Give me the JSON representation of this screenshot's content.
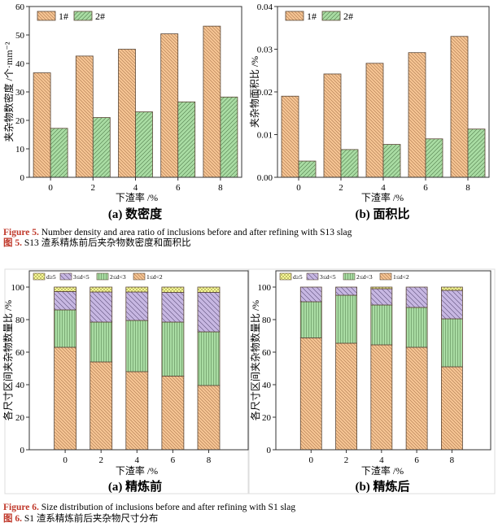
{
  "figure5": {
    "caption_en_label": "Figure 5.",
    "caption_en": " Number density and area ratio of inclusions before and after refining with S13 slag",
    "caption_zh_label": "图 5.",
    "caption_zh": " S13 渣系精炼前后夹杂物数密度和面积比"
  },
  "figure6": {
    "caption_en_label": "Figure 6.",
    "caption_en": " Size distribution of inclusions before and after refining with S1 slag",
    "caption_zh_label": "图 6.",
    "caption_zh": " S1 渣系精炼前后夹杂物尺寸分布"
  },
  "colors": {
    "orange": "#f6c594",
    "green": "#a9dca3",
    "purple": "#c7b7e2",
    "yellow": "#fbfb9a",
    "edge": "#5a4636"
  },
  "chart_data": [
    {
      "type": "bar",
      "title": "(a) 数密度",
      "xlabel": "下渣率 /%",
      "ylabel": "夹杂物数密度 /个·mm⁻²",
      "categories": [
        0,
        2,
        4,
        6,
        8
      ],
      "xlim": [
        -1,
        9
      ],
      "ylim": [
        0,
        60
      ],
      "yticks": [
        0,
        10,
        20,
        30,
        40,
        50,
        60
      ],
      "ytick_labels": [
        "0",
        "10",
        "20",
        "30",
        "40",
        "50",
        "60"
      ],
      "legend": "top-left",
      "series": [
        {
          "name": "1#",
          "values": [
            36.7,
            42.6,
            45.0,
            50.4,
            53.1
          ]
        },
        {
          "name": "2#",
          "values": [
            17.2,
            21.0,
            23.0,
            26.5,
            28.2
          ]
        }
      ]
    },
    {
      "type": "bar",
      "title": "(b) 面积比",
      "xlabel": "下渣率 /%",
      "ylabel": "夹杂物面积比 /%",
      "categories": [
        0,
        2,
        4,
        6,
        8
      ],
      "xlim": [
        -1,
        9
      ],
      "ylim": [
        0,
        0.04
      ],
      "yticks": [
        0,
        0.01,
        0.02,
        0.03,
        0.04
      ],
      "ytick_labels": [
        "0.00",
        "0.01",
        "0.02",
        "0.03",
        "0.04"
      ],
      "legend": "top-left",
      "series": [
        {
          "name": "1#",
          "values": [
            0.019,
            0.0242,
            0.0267,
            0.0292,
            0.033
          ]
        },
        {
          "name": "2#",
          "values": [
            0.0038,
            0.0065,
            0.0077,
            0.009,
            0.0113
          ]
        }
      ]
    },
    {
      "type": "stacked_bar",
      "title": "(a) 精炼前",
      "xlabel": "下渣率 /%",
      "ylabel": "各尺寸区间夹杂物数量比 /%",
      "categories": [
        0,
        2,
        4,
        6,
        8
      ],
      "xlim": [
        -2,
        10.2
      ],
      "ylim": [
        0,
        110
      ],
      "yticks": [
        0,
        20,
        40,
        60,
        80,
        100
      ],
      "ytick_labels": [
        "0",
        "20",
        "40",
        "60",
        "80",
        "100"
      ],
      "legend": "top",
      "series": [
        {
          "name": "1≤d<2",
          "values": [
            63.0,
            54.0,
            48.0,
            45.3,
            39.5
          ]
        },
        {
          "name": "2≤d<3",
          "values": [
            23.0,
            24.5,
            31.5,
            33.2,
            33.0
          ]
        },
        {
          "name": "3≤d<5",
          "values": [
            11.3,
            18.5,
            17.5,
            18.3,
            24.3
          ]
        },
        {
          "name": "d≥5",
          "values": [
            2.7,
            3.0,
            3.0,
            3.2,
            3.2
          ]
        }
      ]
    },
    {
      "type": "stacked_bar",
      "title": "(b) 精炼后",
      "xlabel": "下渣率 /%",
      "ylabel": "各尺寸区间夹杂物数量比 /%",
      "categories": [
        0,
        2,
        4,
        6,
        8
      ],
      "xlim": [
        -2,
        10.2
      ],
      "ylim": [
        0,
        110
      ],
      "yticks": [
        0,
        20,
        40,
        60,
        80,
        100
      ],
      "ytick_labels": [
        "0",
        "20",
        "40",
        "60",
        "80",
        "100"
      ],
      "legend": "top",
      "series": [
        {
          "name": "1≤d<2",
          "values": [
            68.8,
            65.5,
            64.5,
            63.0,
            51.0
          ]
        },
        {
          "name": "2≤d<3",
          "values": [
            22.2,
            29.5,
            24.5,
            24.5,
            29.5
          ]
        },
        {
          "name": "3≤d<5",
          "values": [
            9.0,
            5.0,
            10.0,
            12.5,
            17.5
          ]
        },
        {
          "name": "d≥5",
          "values": [
            0.0,
            0.0,
            1.0,
            0.0,
            2.0
          ]
        }
      ]
    }
  ]
}
